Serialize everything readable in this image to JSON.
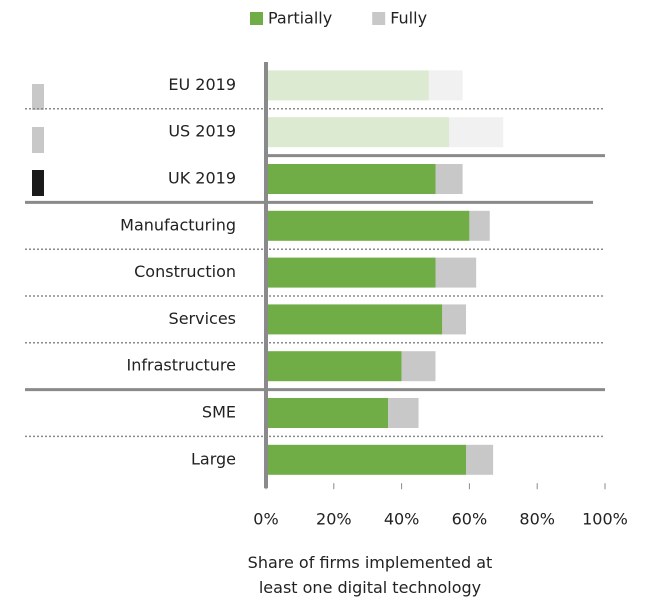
{
  "chart_data": {
    "type": "stacked_barh",
    "categories": [
      "EU 2019",
      "US 2019",
      "UK 2019",
      "Manufacturing",
      "Construction",
      "Services",
      "Infrastructure",
      "SME",
      "Large"
    ],
    "series": [
      {
        "name": "Partially",
        "color": "#70ad47",
        "values": [
          48,
          54,
          50,
          60,
          50,
          52,
          40,
          36,
          59
        ]
      },
      {
        "name": "Fully",
        "color": "#c8c8c8",
        "values": [
          10,
          16,
          8,
          6,
          12,
          7,
          10,
          9,
          8
        ]
      }
    ],
    "dimmed": [
      true,
      true,
      false,
      false,
      false,
      false,
      false,
      false,
      false
    ],
    "xlim": [
      0,
      100
    ],
    "xticks": [
      {
        "value": 0,
        "label": "0%"
      },
      {
        "value": 20,
        "label": "20%"
      },
      {
        "value": 40,
        "label": "40%"
      },
      {
        "value": 60,
        "label": "60%"
      },
      {
        "value": 80,
        "label": "80%"
      },
      {
        "value": 100,
        "label": "100%"
      }
    ],
    "xlabel": "Share of firms implemented at least one digital technology",
    "legend": "top"
  }
}
